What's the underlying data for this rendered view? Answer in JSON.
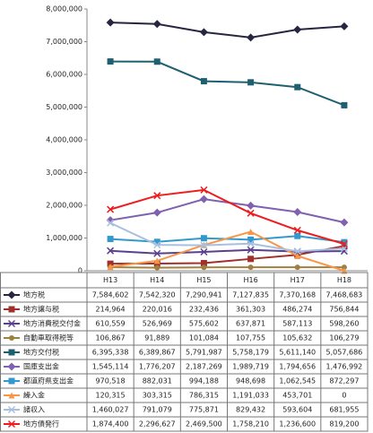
{
  "chart_data": {
    "type": "line",
    "categories": [
      "H13",
      "H14",
      "H15",
      "H16",
      "H17",
      "H18"
    ],
    "ylim": [
      0,
      8000000
    ],
    "yticks": [
      0,
      {
        "value": 1000000,
        "label": "1,000,000"
      },
      {
        "value": 2000000,
        "label": "2,000,000"
      },
      {
        "value": 3000000,
        "label": "3,000,000"
      },
      {
        "value": 4000000,
        "label": "4,000,000"
      },
      {
        "value": 5000000,
        "label": "5,000,000"
      },
      {
        "value": 6000000,
        "label": "6,000,000"
      },
      {
        "value": 7000000,
        "label": "7,000,000"
      },
      {
        "value": 8000000,
        "label": "8,000,000"
      }
    ],
    "grid": false,
    "series": [
      {
        "name": "地方税",
        "color": "#262640",
        "marker": "diamond",
        "values": [
          7584602,
          7542320,
          7290941,
          7127835,
          7370168,
          7468683
        ],
        "value_labels": [
          "7,584,602",
          "7,542,320",
          "7,290,941",
          "7,127,835",
          "7,370,168",
          "7,468,683"
        ]
      },
      {
        "name": "地方譲与税",
        "color": "#a0302c",
        "marker": "square",
        "values": [
          214964,
          220016,
          232436,
          361303,
          486274,
          756844
        ],
        "value_labels": [
          "214,964",
          "220,016",
          "232,436",
          "361,303",
          "486,274",
          "756,844"
        ]
      },
      {
        "name": "地方消費税交付金",
        "color": "#5a3f8c",
        "marker": "x",
        "values": [
          610559,
          526969,
          575602,
          637871,
          587113,
          598260
        ],
        "value_labels": [
          "610,559",
          "526,969",
          "575,602",
          "637,871",
          "587,113",
          "598,260"
        ]
      },
      {
        "name": "自動車取得税等",
        "color": "#a08040",
        "marker": "circle",
        "values": [
          106867,
          91889,
          101084,
          107755,
          105632,
          106279
        ],
        "value_labels": [
          "106,867",
          "91,889",
          "101,084",
          "107,755",
          "105,632",
          "106,279"
        ]
      },
      {
        "name": "地方交付税",
        "color": "#1f6070",
        "marker": "square",
        "values": [
          6395338,
          6389867,
          5791987,
          5758179,
          5611140,
          5057686
        ],
        "value_labels": [
          "6,395,338",
          "6,389,867",
          "5,791,987",
          "5,758,179",
          "5,611,140",
          "5,057,686"
        ]
      },
      {
        "name": "国庫支出金",
        "color": "#8060b0",
        "marker": "diamond",
        "values": [
          1545114,
          1776207,
          2187269,
          1989719,
          1794656,
          1476992
        ],
        "value_labels": [
          "1,545,114",
          "1,776,207",
          "2,187,269",
          "1,989,719",
          "1,794,656",
          "1,476,992"
        ]
      },
      {
        "name": "都道府県支出金",
        "color": "#3399cc",
        "marker": "square",
        "values": [
          970518,
          882031,
          994188,
          948698,
          1062545,
          872297
        ],
        "value_labels": [
          "970,518",
          "882,031",
          "994,188",
          "948,698",
          "1,062,545",
          "872,297"
        ]
      },
      {
        "name": "繰入金",
        "color": "#f79646",
        "marker": "triangle",
        "values": [
          120315,
          303315,
          786315,
          1191033,
          453701,
          0
        ],
        "value_labels": [
          "120,315",
          "303,315",
          "786,315",
          "1,191,033",
          "453,701",
          "0"
        ]
      },
      {
        "name": "諸収入",
        "color": "#a8c0e0",
        "marker": "x",
        "values": [
          1460027,
          791079,
          775871,
          829432,
          593604,
          681955
        ],
        "value_labels": [
          "1,460,027",
          "791,079",
          "775,871",
          "829,432",
          "593,604",
          "681,955"
        ]
      },
      {
        "name": "地方債発行",
        "color": "#ee1c1c",
        "marker": "x",
        "values": [
          1874400,
          2296627,
          2469500,
          1758210,
          1236600,
          819200
        ],
        "value_labels": [
          "1,874,400",
          "2,296,627",
          "2,469,500",
          "1,758,210",
          "1,236,600",
          "819,200"
        ]
      }
    ]
  }
}
